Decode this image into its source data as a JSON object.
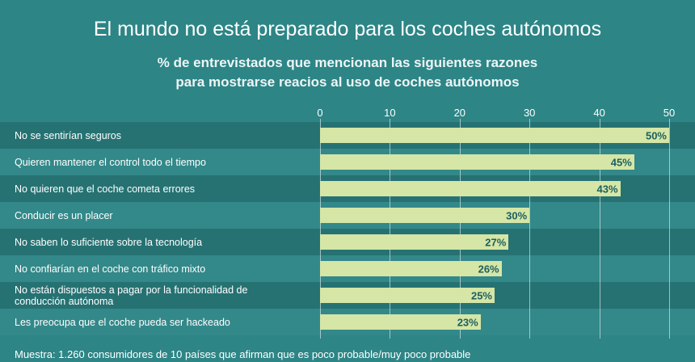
{
  "chart_data": {
    "type": "bar",
    "orientation": "horizontal",
    "title": "El mundo no está preparado para los coches autónomos",
    "subtitle": [
      "% de entrevistados que mencionan las siguientes razones",
      "para mostrarse reacios al uso de coches autónomos"
    ],
    "categories": [
      "No se sentirían seguros",
      "Quieren mantener el control todo el tiempo",
      "No quieren que el coche cometa errores",
      "Conducir es un placer",
      "No saben lo suficiente sobre la tecnología",
      "No confiarían en el coche con tráfico mixto",
      "No están dispuestos a pagar por la funcionalidad de conducción autónoma",
      "Les preocupa que el coche pueda ser hackeado"
    ],
    "values": [
      50,
      45,
      43,
      30,
      27,
      26,
      25,
      23
    ],
    "value_labels": [
      "50%",
      "45%",
      "43%",
      "30%",
      "27%",
      "26%",
      "25%",
      "23%"
    ],
    "color": "#d5e6a6",
    "xlim": [
      0,
      50
    ],
    "xticks": [
      0,
      10,
      20,
      30,
      40,
      50
    ],
    "grid": true,
    "note": "Muestra: 1.260 consumidores de 10 países que afirman que es poco probable/muy poco probable"
  }
}
